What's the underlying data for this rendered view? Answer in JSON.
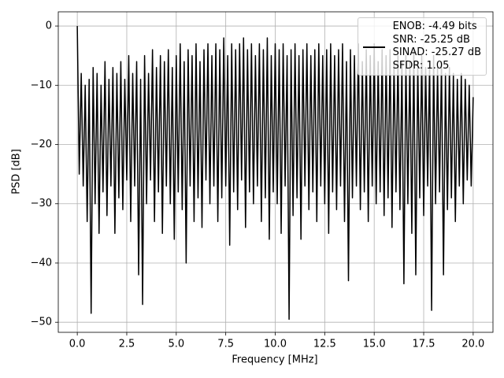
{
  "chart_data": {
    "type": "line",
    "xlabel": "Frequency [MHz]",
    "ylabel": "PSD [dB]",
    "x": [
      0,
      0.1,
      0.2,
      0.3,
      0.4,
      0.5,
      0.6,
      0.7,
      0.8,
      0.9,
      1,
      1.1,
      1.2,
      1.3,
      1.4,
      1.5,
      1.6,
      1.7,
      1.8,
      1.9,
      2,
      2.1,
      2.2,
      2.3,
      2.4,
      2.5,
      2.6,
      2.7,
      2.8,
      2.9,
      3,
      3.1,
      3.2,
      3.3,
      3.4,
      3.5,
      3.6,
      3.7,
      3.8,
      3.9,
      4,
      4.1,
      4.2,
      4.3,
      4.4,
      4.5,
      4.6,
      4.7,
      4.8,
      4.9,
      5,
      5.1,
      5.2,
      5.3,
      5.4,
      5.5,
      5.6,
      5.7,
      5.8,
      5.9,
      6,
      6.1,
      6.2,
      6.3,
      6.4,
      6.5,
      6.6,
      6.7,
      6.8,
      6.9,
      7,
      7.1,
      7.2,
      7.3,
      7.4,
      7.5,
      7.6,
      7.7,
      7.8,
      7.9,
      8,
      8.1,
      8.2,
      8.3,
      8.4,
      8.5,
      8.6,
      8.7,
      8.8,
      8.9,
      9,
      9.1,
      9.2,
      9.3,
      9.4,
      9.5,
      9.6,
      9.7,
      9.8,
      9.9,
      10,
      10.1,
      10.2,
      10.3,
      10.4,
      10.5,
      10.6,
      10.7,
      10.8,
      10.9,
      11,
      11.1,
      11.2,
      11.3,
      11.4,
      11.5,
      11.6,
      11.7,
      11.8,
      11.9,
      12,
      12.1,
      12.2,
      12.3,
      12.4,
      12.5,
      12.6,
      12.7,
      12.8,
      12.9,
      13,
      13.1,
      13.2,
      13.3,
      13.4,
      13.5,
      13.6,
      13.7,
      13.8,
      13.9,
      14,
      14.1,
      14.2,
      14.3,
      14.4,
      14.5,
      14.6,
      14.7,
      14.8,
      14.9,
      15,
      15.1,
      15.2,
      15.3,
      15.4,
      15.5,
      15.6,
      15.7,
      15.8,
      15.9,
      16,
      16.1,
      16.2,
      16.3,
      16.4,
      16.5,
      16.6,
      16.7,
      16.8,
      16.9,
      17,
      17.1,
      17.2,
      17.3,
      17.4,
      17.5,
      17.6,
      17.7,
      17.8,
      17.9,
      18,
      18.1,
      18.2,
      18.3,
      18.4,
      18.5,
      18.6,
      18.7,
      18.8,
      18.9,
      19,
      19.1,
      19.2,
      19.3,
      19.4,
      19.5,
      19.6,
      19.7,
      19.8,
      19.9,
      20
    ],
    "series": [
      {
        "name": "ENOB: -4.49 bits\nSNR: -25.25 dB\nSINAD: -25.27 dB\nSFDR: 1.05",
        "color": "#000000",
        "values": [
          0,
          -25,
          -8,
          -27,
          -10,
          -33,
          -9,
          -48.5,
          -7,
          -30,
          -8,
          -35,
          -10,
          -28,
          -6,
          -32,
          -9,
          -27,
          -7,
          -35,
          -8,
          -29,
          -6,
          -31,
          -9,
          -26,
          -5,
          -33,
          -8,
          -27,
          -6,
          -42,
          -9,
          -47,
          -5,
          -30,
          -8,
          -26,
          -4,
          -33,
          -7,
          -28,
          -5,
          -35,
          -6,
          -27,
          -4,
          -30,
          -7,
          -36,
          -5,
          -28,
          -3,
          -31,
          -6,
          -40,
          -4,
          -27,
          -5,
          -33,
          -3,
          -29,
          -6,
          -34,
          -4,
          -26,
          -3,
          -30,
          -5,
          -27,
          -3,
          -33,
          -4,
          -29,
          -2,
          -27,
          -5,
          -37,
          -3,
          -28,
          -4,
          -31,
          -3,
          -26,
          -2,
          -34,
          -4,
          -28,
          -3,
          -30,
          -5,
          -27,
          -3,
          -33,
          -4,
          -29,
          -2,
          -36,
          -5,
          -28,
          -3,
          -30,
          -4,
          -35,
          -3,
          -27,
          -5,
          -49.5,
          -4,
          -32,
          -3,
          -29,
          -5,
          -36,
          -4,
          -27,
          -3,
          -31,
          -5,
          -28,
          -4,
          -33,
          -3,
          -27,
          -5,
          -30,
          -4,
          -35,
          -3,
          -28,
          -5,
          -31,
          -4,
          -27,
          -3,
          -33,
          -6,
          -43,
          -4,
          -29,
          -5,
          -27,
          -3,
          -31,
          -6,
          -28,
          -4,
          -33,
          -5,
          -27,
          -3,
          -30,
          -6,
          -28,
          -4,
          -32,
          -5,
          -29,
          -4,
          -34,
          -6,
          -28,
          -5,
          -31,
          -6,
          -43.5,
          -5,
          -30,
          -6,
          -35,
          -4,
          -42,
          -6,
          -29,
          -5,
          -32,
          -7,
          -27,
          -6,
          -48,
          -5,
          -30,
          -7,
          -28,
          -6,
          -42,
          -8,
          -31,
          -7,
          -29,
          -8,
          -33,
          -9,
          -27,
          -8,
          -30,
          -9,
          -26,
          -10,
          -27,
          -12
        ]
      }
    ],
    "xlim": [
      -0.96,
      21.0
    ],
    "ylim": [
      -51.7,
      2.4
    ],
    "xticks": [
      {
        "value": 0,
        "label": "0.0"
      },
      2.5,
      {
        "value": 5,
        "label": "5.0"
      },
      7.5,
      {
        "value": 10,
        "label": "10.0"
      },
      12.5,
      {
        "value": 15,
        "label": "15.0"
      },
      17.5,
      {
        "value": 20,
        "label": "20.0"
      }
    ],
    "yticks": [
      0,
      {
        "value": -10,
        "label": "−10"
      },
      {
        "value": -20,
        "label": "−20"
      },
      {
        "value": -30,
        "label": "−30"
      },
      {
        "value": -40,
        "label": "−40"
      },
      {
        "value": -50,
        "label": "−50"
      }
    ],
    "grid": true,
    "legend": "upper-right"
  }
}
